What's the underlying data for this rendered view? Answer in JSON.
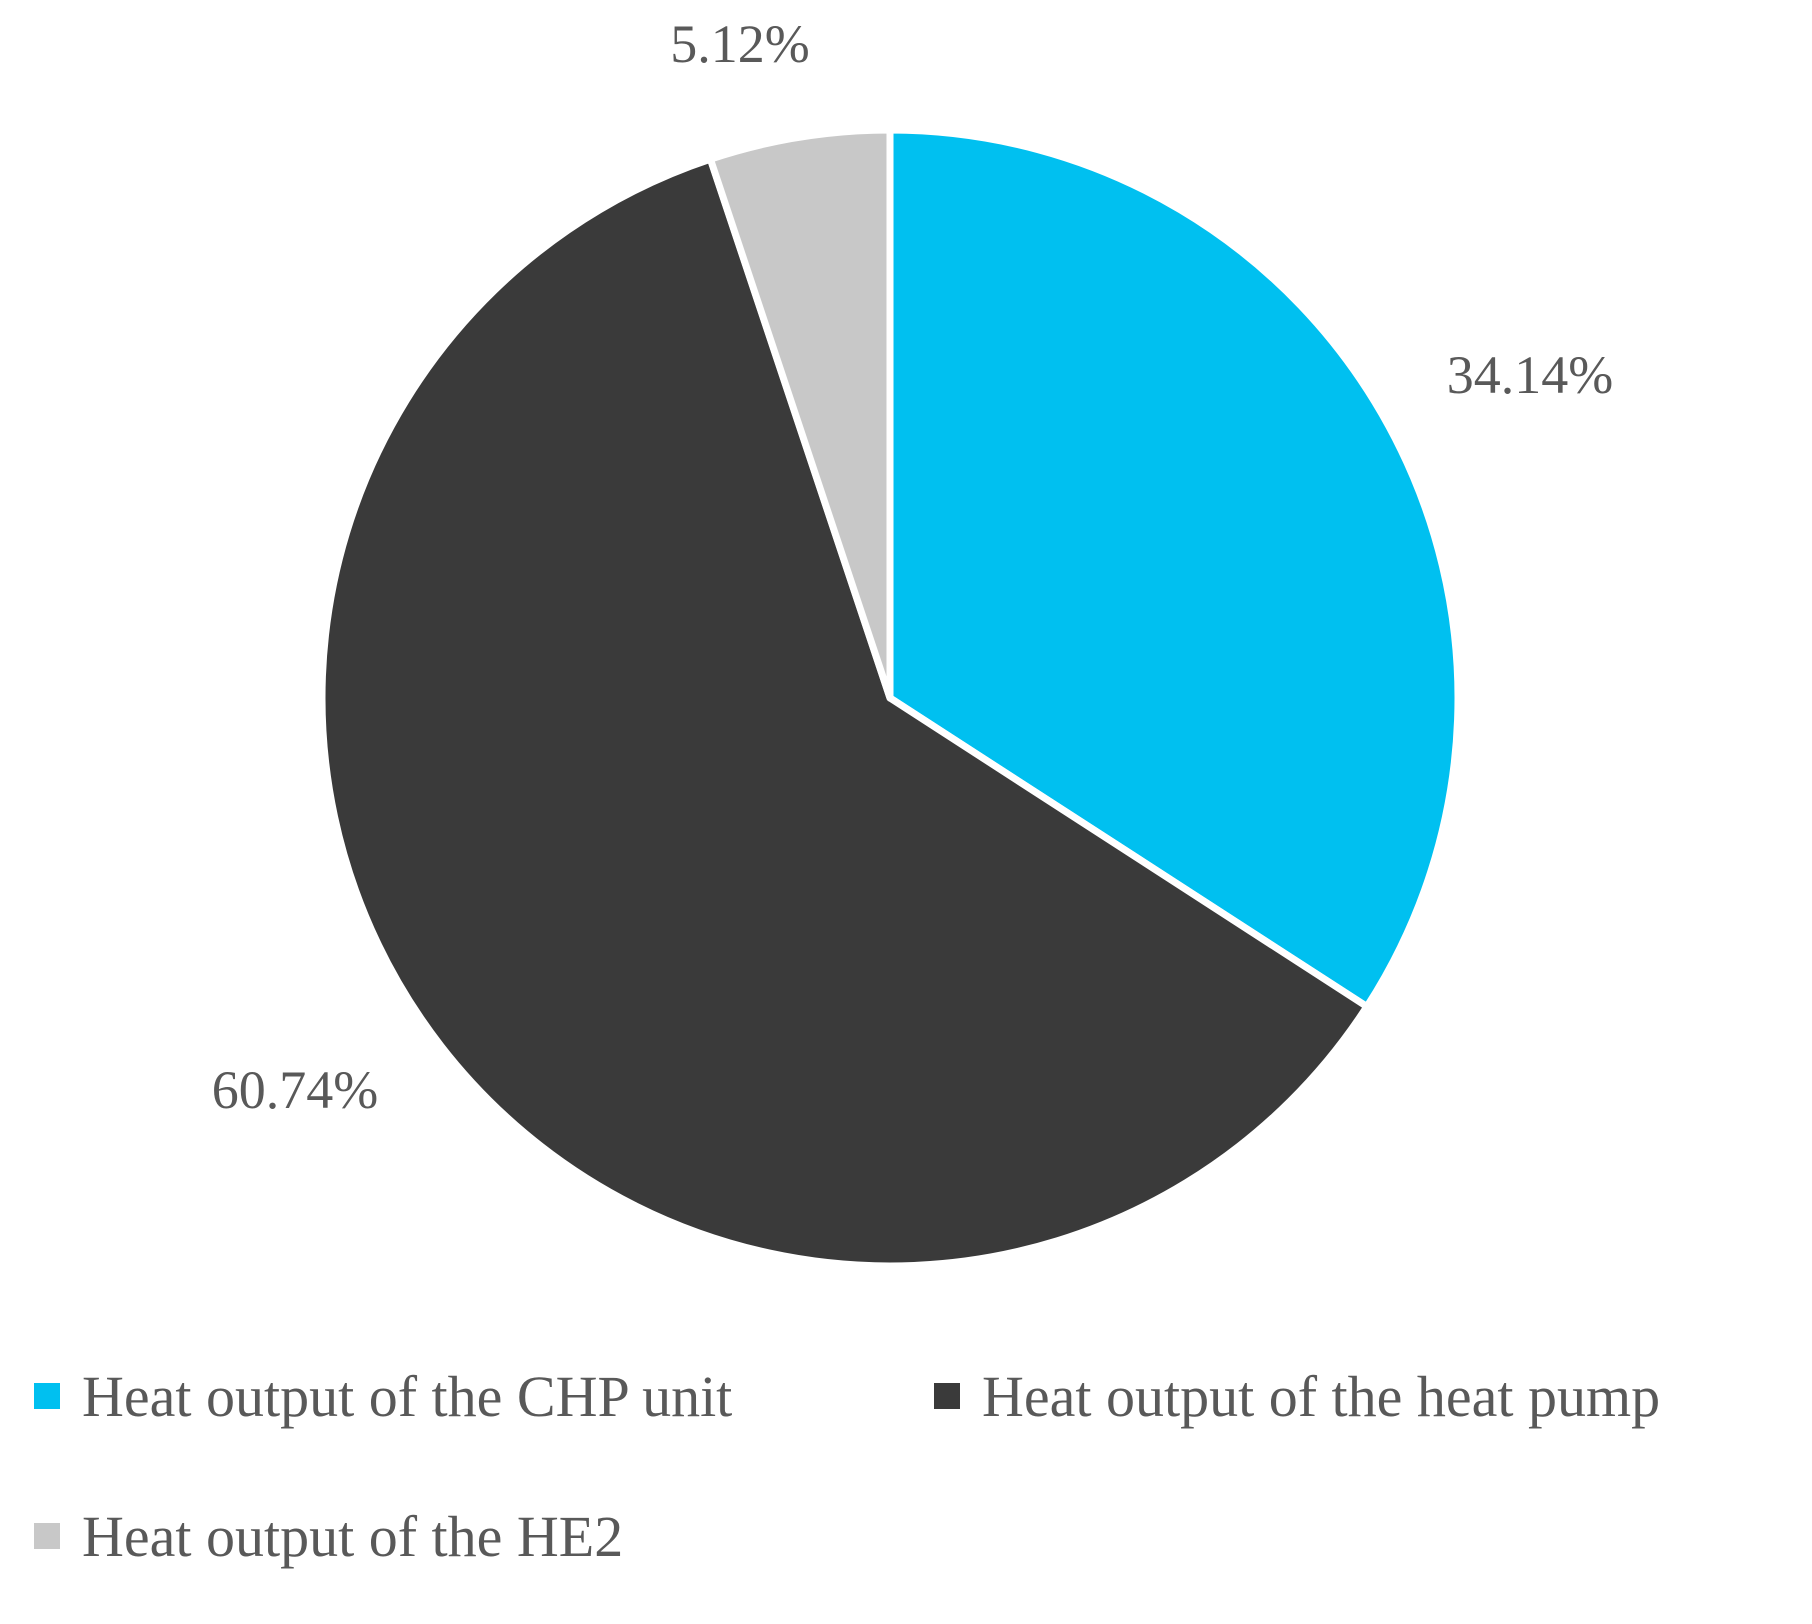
{
  "chart_data": {
    "type": "pie",
    "start_angle_deg": 0,
    "direction": "clockwise",
    "slice_border_color": "#ffffff",
    "slices": [
      {
        "name": "Heat output of the CHP unit",
        "value": 34.14,
        "label": "34.14%",
        "color": "#00C0F0"
      },
      {
        "name": "Heat output of the heat pump",
        "value": 60.74,
        "label": "60.74%",
        "color": "#3A3A3A"
      },
      {
        "name": "Heat output of the HE2",
        "value": 5.12,
        "label": "5.12%",
        "color": "#C8C8C8"
      }
    ],
    "legend": {
      "placement": "bottom",
      "entries": [
        {
          "label": "Heat output of the CHP unit",
          "color": "#00C0F0"
        },
        {
          "label": "Heat output of the heat pump",
          "color": "#3A3A3A"
        },
        {
          "label": "Heat output of the HE2",
          "color": "#C8C8C8"
        }
      ]
    }
  }
}
